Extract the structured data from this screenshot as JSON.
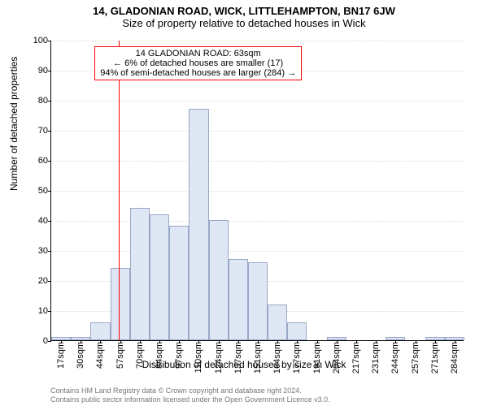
{
  "header": {
    "title": "14, GLADONIAN ROAD, WICK, LITTLEHAMPTON, BN17 6JW",
    "subtitle": "Size of property relative to detached houses in Wick",
    "title_fontsize": 13,
    "subtitle_fontsize": 13
  },
  "chart": {
    "type": "histogram",
    "ylabel": "Number of detached properties",
    "xlabel": "Distribution of detached houses by size in Wick",
    "label_fontsize": 12,
    "tick_fontsize": 11,
    "ylim": [
      0,
      100
    ],
    "ytick_step": 10,
    "background_color": "#ffffff",
    "grid_color": "#d9dbe0",
    "bar_fill": "#dfe7f5",
    "bar_stroke": "#9aa7c7",
    "axis_color": "#000000",
    "x_ticks": [
      "17sqm",
      "30sqm",
      "44sqm",
      "57sqm",
      "70sqm",
      "84sqm",
      "97sqm",
      "110sqm",
      "124sqm",
      "137sqm",
      "151sqm",
      "164sqm",
      "177sqm",
      "191sqm",
      "204sqm",
      "217sqm",
      "231sqm",
      "244sqm",
      "257sqm",
      "271sqm",
      "284sqm"
    ],
    "values": [
      1,
      1,
      6,
      24,
      44,
      42,
      38,
      77,
      40,
      27,
      26,
      12,
      6,
      0,
      1,
      0,
      0,
      1,
      0,
      1,
      1
    ],
    "marker": {
      "position_index": 3.45,
      "color": "#ff0000"
    },
    "annotation": {
      "lines": [
        "14 GLADONIAN ROAD: 63sqm",
        "← 6% of detached houses are smaller (17)",
        "94% of semi-detached houses are larger (284) →"
      ],
      "border_color": "#ff0000",
      "fontsize": 11,
      "left_index": 2.2,
      "top_value": 98
    }
  },
  "credits": {
    "line1": "Contains HM Land Registry data © Crown copyright and database right 2024.",
    "line2": "Contains public sector information licensed under the Open Government Licence v3.0.",
    "fontsize": 9,
    "color": "#777777"
  }
}
